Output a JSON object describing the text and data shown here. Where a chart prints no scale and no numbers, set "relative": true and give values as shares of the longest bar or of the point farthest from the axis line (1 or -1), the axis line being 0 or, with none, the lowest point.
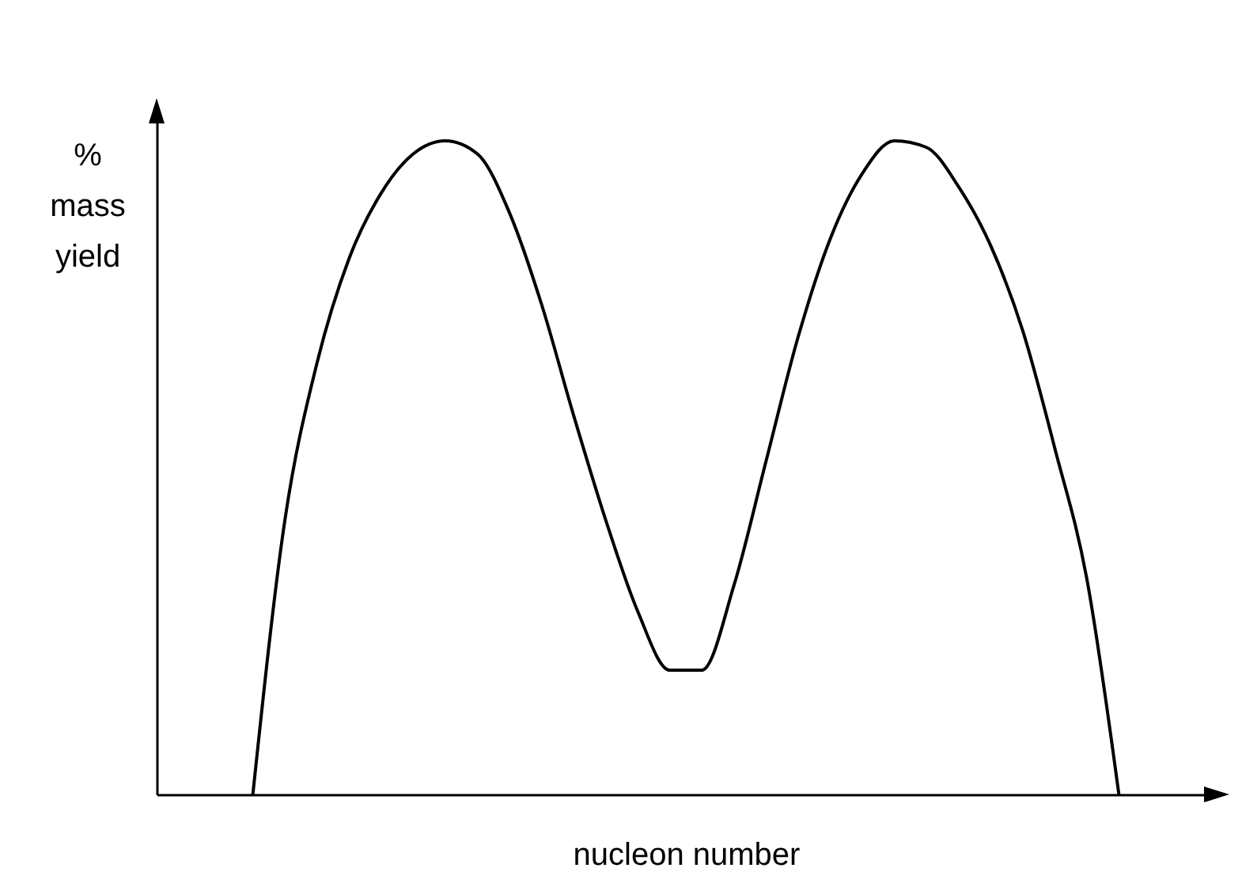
{
  "chart_data": {
    "type": "line",
    "relative": true,
    "xlabel": "nucleon number",
    "ylabel": "% mass yield",
    "grid": false,
    "tick_labels": false,
    "color": "#000000",
    "categories": [
      null,
      null,
      null,
      null,
      null,
      null,
      null,
      null,
      null,
      null,
      null,
      null,
      null,
      null,
      null,
      null,
      null,
      null,
      null,
      null,
      null,
      null,
      null,
      null,
      null,
      null,
      null,
      null,
      null,
      null,
      null,
      null,
      null,
      null
    ],
    "values": [
      null,
      null,
      null,
      0,
      0.42,
      0.66,
      0.82,
      0.92,
      0.98,
      1,
      0.98,
      0.89,
      0.75,
      0.58,
      0.42,
      0.28,
      0.19,
      0.19,
      0.32,
      0.51,
      0.7,
      0.85,
      0.95,
      1,
      0.99,
      0.93,
      0.84,
      0.71,
      0.53,
      0.33,
      0,
      null,
      null,
      null
    ]
  }
}
